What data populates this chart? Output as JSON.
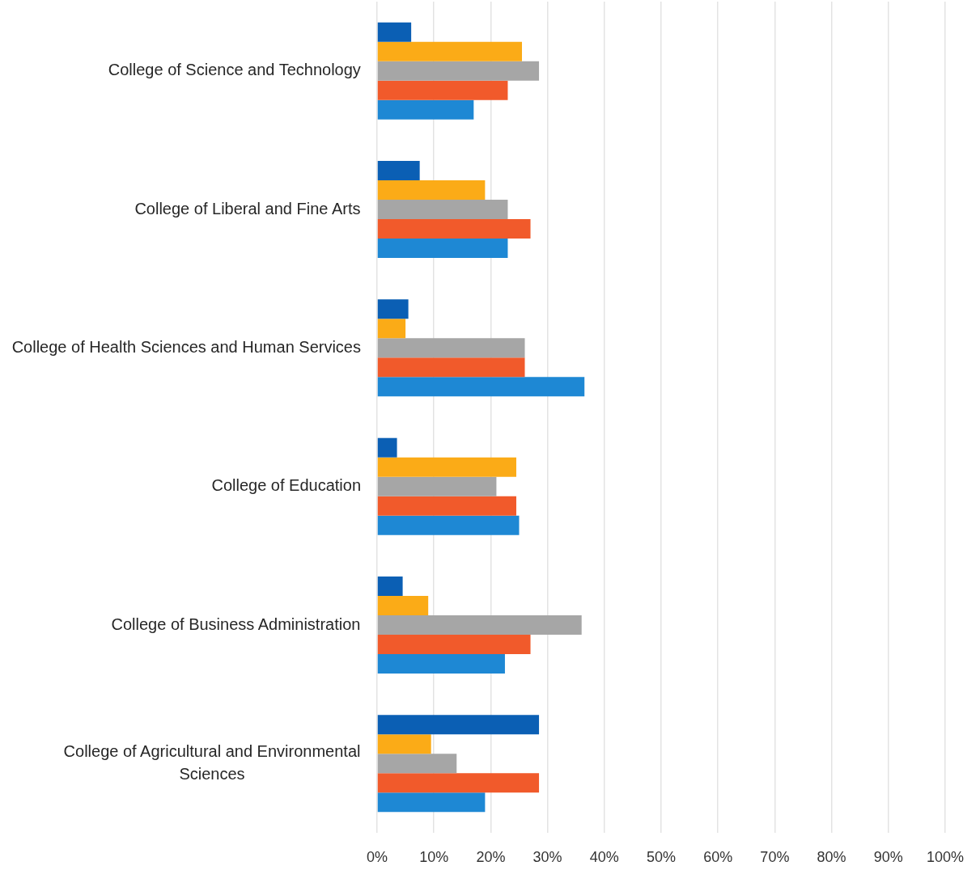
{
  "chart_data": {
    "type": "bar",
    "orientation": "horizontal",
    "categories": [
      "College of Science and Technology",
      "College of Liberal and Fine Arts",
      "College of Health Sciences and Human Services",
      "College of Education",
      "College of Business Administration",
      "College of Agricultural and Environmental Sciences"
    ],
    "series": [
      {
        "color": "#0b5fb4",
        "values": [
          6,
          7.5,
          5.5,
          3.5,
          4.5,
          28.5
        ]
      },
      {
        "color": "#fbab17",
        "values": [
          25.5,
          19,
          5,
          24.5,
          9,
          9.5
        ]
      },
      {
        "color": "#a6a6a6",
        "values": [
          28.5,
          23,
          26,
          21,
          36,
          14
        ]
      },
      {
        "color": "#f15a2b",
        "values": [
          23,
          27,
          26,
          24.5,
          27,
          28.5
        ]
      },
      {
        "color": "#1e88d4",
        "values": [
          17,
          23,
          36.5,
          25,
          22.5,
          19
        ]
      }
    ],
    "xlim": [
      0,
      100
    ],
    "xticks": [
      {
        "value": 0,
        "label": "0%"
      },
      {
        "value": 10,
        "label": "10%"
      },
      {
        "value": 20,
        "label": "20%"
      },
      {
        "value": 30,
        "label": "30%"
      },
      {
        "value": 40,
        "label": "40%"
      },
      {
        "value": 50,
        "label": "50%"
      },
      {
        "value": 60,
        "label": "60%"
      },
      {
        "value": 70,
        "label": "70%"
      },
      {
        "value": 80,
        "label": "80%"
      },
      {
        "value": 90,
        "label": "90%"
      },
      {
        "value": 100,
        "label": "100%"
      }
    ],
    "grid": "x"
  }
}
